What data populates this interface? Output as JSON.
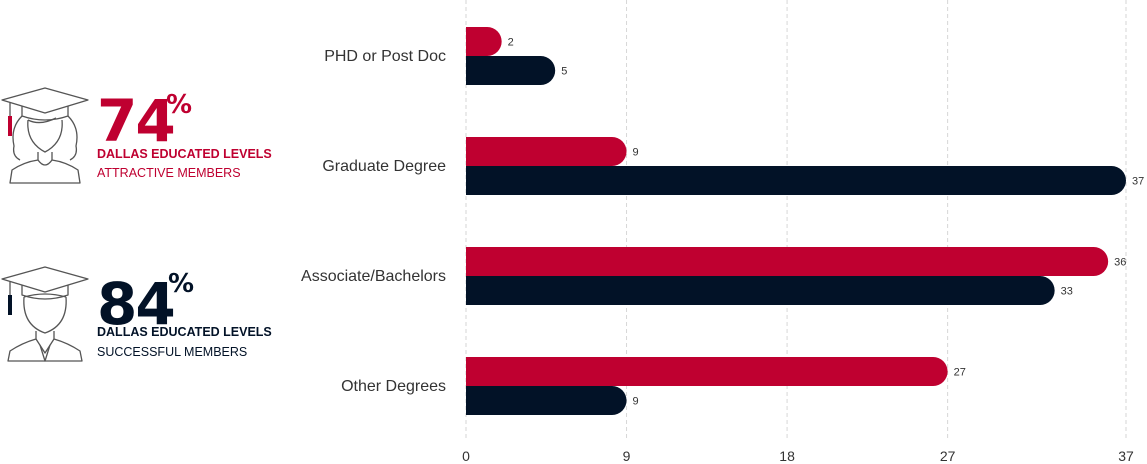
{
  "colors": {
    "accent": "#bf0030",
    "dark": "#021227",
    "grid": "#d6d6d6",
    "text": "#333333"
  },
  "stats": [
    {
      "percent": "74",
      "percent_sign": "%",
      "line1": "DALLAS EDUCATED LEVELS",
      "line2": "ATTRACTIVE MEMBERS",
      "icon": "female-graduate-icon"
    },
    {
      "percent": "84",
      "percent_sign": "%",
      "line1": "DALLAS EDUCATED LEVELS",
      "line2": "SUCCESSFUL MEMBERS",
      "icon": "male-graduate-icon"
    }
  ],
  "chart_data": {
    "type": "bar",
    "orientation": "horizontal",
    "categories": [
      "PHD or Post Doc",
      "Graduate Degree",
      "Associate/Bachelors",
      "Other Degrees"
    ],
    "series": [
      {
        "values": [
          2,
          9,
          36,
          27
        ],
        "color": "#bf0030"
      },
      {
        "values": [
          5,
          37,
          33,
          9
        ],
        "color": "#021227"
      }
    ],
    "xlim": [
      0,
      37
    ],
    "xticks": [
      0,
      9,
      18,
      27,
      37
    ],
    "grid": "vertical dashed",
    "legend": "none"
  }
}
